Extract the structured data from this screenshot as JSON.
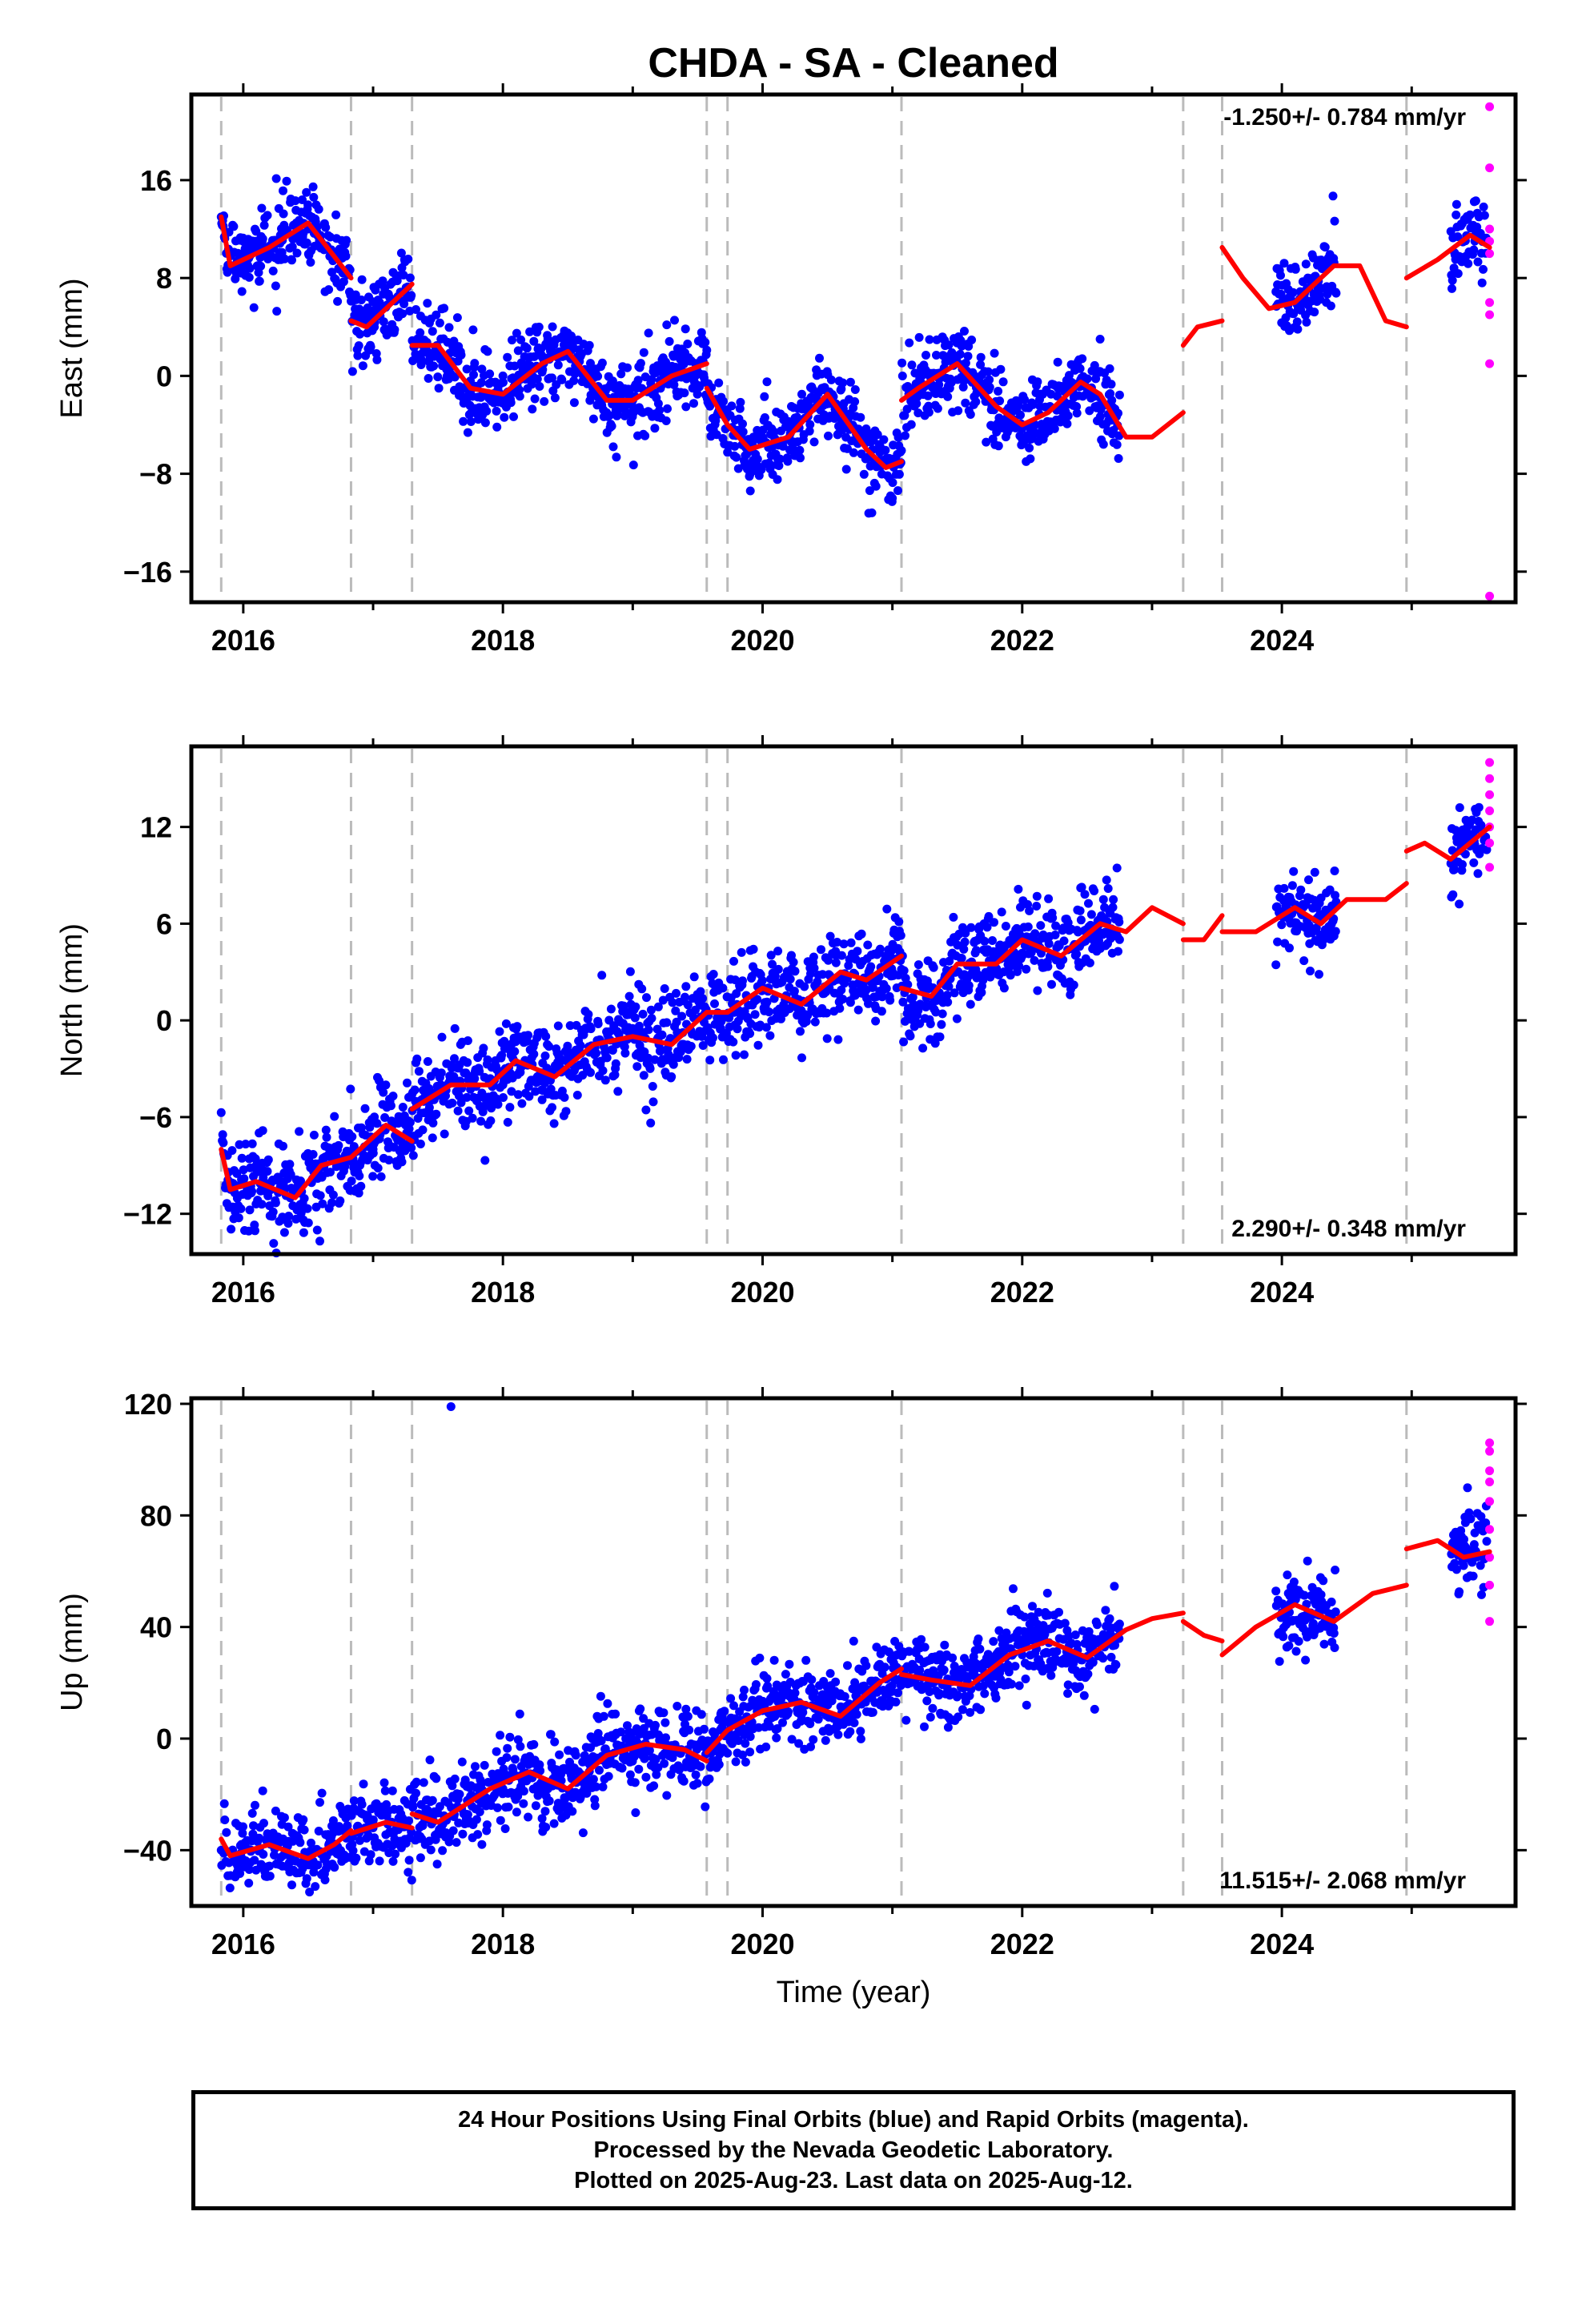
{
  "title": "CHDA  - SA - Cleaned",
  "x_axis_label": "Time (year)",
  "caption": [
    "24 Hour Positions Using Final Orbits (blue) and Rapid Orbits (magenta).",
    "Processed by the Nevada Geodetic Laboratory.",
    "Plotted on 2025-Aug-23. Last data on 2025-Aug-12."
  ],
  "colors": {
    "final_orbits": "#0000ff",
    "rapid_orbits": "#ff00ff",
    "model_fit": "#ff0000",
    "event_lines": "#bbbbbb"
  },
  "chart_data": [
    {
      "type": "scatter",
      "component": "East",
      "ylabel": "East (mm)",
      "rate_label": "-1.250+/- 0.784 mm/yr",
      "rate_label_position": "top-right",
      "xlim": [
        2015.6,
        2025.8
      ],
      "ylim": [
        -18.5,
        23
      ],
      "yticks": [
        16,
        8,
        0,
        -8,
        -16
      ],
      "xticks": [
        2016,
        2018,
        2020,
        2022,
        2024
      ],
      "event_lines": [
        2015.83,
        2016.83,
        2017.3,
        2019.57,
        2019.73,
        2021.07,
        2023.24,
        2023.54,
        2024.96
      ],
      "model_fit": {
        "segments": [
          {
            "x": [
              2015.83,
              2015.9,
              2016.2,
              2016.5,
              2016.83
            ],
            "y": [
              13,
              9,
              10.5,
              12.5,
              8
            ]
          },
          {
            "x": [
              2016.83,
              2016.95,
              2017.3
            ],
            "y": [
              4.5,
              4,
              7.5
            ]
          },
          {
            "x": [
              2017.3,
              2017.5,
              2017.75,
              2018.0,
              2018.3,
              2018.5,
              2018.8,
              2019.0,
              2019.3,
              2019.57
            ],
            "y": [
              2.5,
              2.5,
              -1,
              -1.5,
              1,
              2,
              -2,
              -2,
              0,
              1
            ]
          },
          {
            "x": [
              2019.57,
              2019.73,
              2019.9,
              2020.2,
              2020.5,
              2020.8,
              2020.95,
              2021.07
            ],
            "y": [
              -1,
              -4,
              -6,
              -5,
              -1.5,
              -6,
              -7.5,
              -7
            ]
          },
          {
            "x": [
              2021.07,
              2021.2,
              2021.5,
              2021.8,
              2022.0,
              2022.2,
              2022.45,
              2022.6,
              2022.8,
              2023.0,
              2023.24
            ],
            "y": [
              -2,
              -1,
              1,
              -2.5,
              -4,
              -3,
              -0.5,
              -1.5,
              -5,
              -5,
              -3
            ]
          },
          {
            "x": [
              2023.24,
              2023.35,
              2023.54
            ],
            "y": [
              2.5,
              4,
              4.5
            ]
          },
          {
            "x": [
              2023.54,
              2023.7,
              2023.9,
              2024.1,
              2024.4,
              2024.6,
              2024.8,
              2024.96
            ],
            "y": [
              10.5,
              8,
              5.5,
              6,
              9,
              9,
              4.5,
              4
            ]
          },
          {
            "x": [
              2024.96,
              2025.2,
              2025.45,
              2025.6
            ],
            "y": [
              8,
              9.5,
              11.5,
              10.5
            ]
          }
        ]
      },
      "final_orbits_sample": {
        "x": [
          2016.0,
          2016.5,
          2017.0,
          2018.0,
          2019.0,
          2020.0,
          2021.0,
          2022.0,
          2022.6,
          2024.2,
          2025.4
        ],
        "y": [
          11,
          12,
          5,
          0,
          -2,
          -5,
          -10,
          -4,
          3,
          8,
          11
        ]
      },
      "rapid_orbits": {
        "x": [
          2025.6,
          2025.6,
          2025.6,
          2025.6,
          2025.6,
          2025.6,
          2025.6,
          2025.6,
          2025.6
        ],
        "y": [
          22,
          17,
          12,
          11,
          10,
          6,
          5,
          1,
          -18
        ]
      }
    },
    {
      "type": "scatter",
      "component": "North",
      "ylabel": "North (mm)",
      "rate_label": "2.290+/- 0.348 mm/yr",
      "rate_label_position": "bottom-right",
      "xlim": [
        2015.6,
        2025.8
      ],
      "ylim": [
        -14.5,
        17
      ],
      "yticks": [
        12,
        6,
        0,
        -6,
        -12
      ],
      "xticks": [
        2016,
        2018,
        2020,
        2022,
        2024
      ],
      "event_lines": [
        2015.83,
        2016.83,
        2017.3,
        2019.57,
        2019.73,
        2021.07,
        2023.24,
        2023.54,
        2024.96
      ],
      "model_fit": {
        "segments": [
          {
            "x": [
              2015.83,
              2015.9,
              2016.1,
              2016.4,
              2016.6,
              2016.83
            ],
            "y": [
              -8,
              -10.5,
              -10,
              -11,
              -9,
              -8.5
            ]
          },
          {
            "x": [
              2016.83,
              2017.1,
              2017.3
            ],
            "y": [
              -8.5,
              -6.5,
              -7.5
            ]
          },
          {
            "x": [
              2017.3,
              2017.6,
              2017.9,
              2018.1,
              2018.4,
              2018.7,
              2019.0,
              2019.3,
              2019.57
            ],
            "y": [
              -5.5,
              -4,
              -4,
              -2.5,
              -3.5,
              -1.5,
              -1,
              -1.5,
              0.5
            ]
          },
          {
            "x": [
              2019.57,
              2019.73,
              2020.0,
              2020.3,
              2020.6,
              2020.8,
              2021.07
            ],
            "y": [
              0.5,
              0.5,
              2,
              1,
              3,
              2.5,
              4
            ]
          },
          {
            "x": [
              2021.07,
              2021.3,
              2021.5,
              2021.8,
              2022.0,
              2022.3,
              2022.6,
              2022.8,
              2023.0,
              2023.24
            ],
            "y": [
              2,
              1.5,
              3.5,
              3.5,
              5,
              4,
              6,
              5.5,
              7,
              6
            ]
          },
          {
            "x": [
              2023.24,
              2023.4,
              2023.54
            ],
            "y": [
              5,
              5,
              6.5
            ]
          },
          {
            "x": [
              2023.54,
              2023.8,
              2024.1,
              2024.3,
              2024.5,
              2024.8,
              2024.96
            ],
            "y": [
              5.5,
              5.5,
              7,
              6,
              7.5,
              7.5,
              8.5
            ]
          },
          {
            "x": [
              2024.96,
              2025.1,
              2025.3,
              2025.6
            ],
            "y": [
              10.5,
              11,
              10,
              12
            ]
          }
        ]
      },
      "final_orbits_sample": {
        "x": [
          2016.0,
          2017.0,
          2018.0,
          2019.0,
          2020.0,
          2021.0,
          2022.0,
          2022.6,
          2024.2,
          2025.4
        ],
        "y": [
          -10,
          -8,
          -4,
          -1,
          2,
          3,
          4,
          6,
          6,
          11
        ]
      },
      "rapid_orbits": {
        "x": [
          2025.6,
          2025.6,
          2025.6,
          2025.6,
          2025.6,
          2025.6,
          2025.6
        ],
        "y": [
          16,
          15,
          14,
          13,
          12,
          11,
          9.5
        ]
      }
    },
    {
      "type": "scatter",
      "component": "Up",
      "ylabel": "Up (mm)",
      "rate_label": "11.515+/- 2.068 mm/yr",
      "rate_label_position": "bottom-right",
      "xlim": [
        2015.6,
        2025.8
      ],
      "ylim": [
        -60,
        122
      ],
      "yticks": [
        120,
        80,
        40,
        0,
        -40
      ],
      "xticks": [
        2016,
        2018,
        2020,
        2022,
        2024
      ],
      "event_lines": [
        2015.83,
        2016.83,
        2017.3,
        2019.57,
        2019.73,
        2021.07,
        2023.24,
        2023.54,
        2024.96
      ],
      "model_fit": {
        "segments": [
          {
            "x": [
              2015.83,
              2015.9,
              2016.2,
              2016.5,
              2016.7,
              2016.83
            ],
            "y": [
              -36,
              -42,
              -38,
              -43,
              -38,
              -33
            ]
          },
          {
            "x": [
              2016.83,
              2017.1,
              2017.3
            ],
            "y": [
              -34,
              -30,
              -32
            ]
          },
          {
            "x": [
              2017.3,
              2017.5,
              2017.9,
              2018.2,
              2018.5,
              2018.8,
              2019.1,
              2019.4,
              2019.57
            ],
            "y": [
              -27,
              -30,
              -18,
              -12,
              -18,
              -6,
              -2,
              -4,
              -8
            ]
          },
          {
            "x": [
              2019.57,
              2019.73,
              2020.0,
              2020.3,
              2020.6,
              2020.9,
              2021.07
            ],
            "y": [
              -5,
              3,
              10,
              13,
              8,
              20,
              25
            ]
          },
          {
            "x": [
              2021.07,
              2021.3,
              2021.6,
              2021.9,
              2022.2,
              2022.5,
              2022.8,
              2023.0,
              2023.24
            ],
            "y": [
              23,
              21,
              19,
              30,
              35,
              29,
              39,
              43,
              45
            ]
          },
          {
            "x": [
              2023.24,
              2023.4,
              2023.54
            ],
            "y": [
              42,
              37,
              35
            ]
          },
          {
            "x": [
              2023.54,
              2023.8,
              2024.1,
              2024.4,
              2024.7,
              2024.96
            ],
            "y": [
              30,
              40,
              48,
              42,
              52,
              55
            ]
          },
          {
            "x": [
              2024.96,
              2025.2,
              2025.4,
              2025.6
            ],
            "y": [
              68,
              71,
              65,
              67
            ]
          }
        ]
      },
      "final_orbits_sample": {
        "x": [
          2016.0,
          2017.0,
          2017.6,
          2018.0,
          2019.0,
          2020.0,
          2021.0,
          2022.0,
          2022.6,
          2024.2,
          2025.4
        ],
        "y": [
          -38,
          -32,
          119,
          -18,
          -6,
          10,
          22,
          30,
          30,
          45,
          62
        ]
      },
      "rapid_orbits": {
        "x": [
          2025.6,
          2025.6,
          2025.6,
          2025.6,
          2025.6,
          2025.6,
          2025.6,
          2025.6,
          2025.6
        ],
        "y": [
          106,
          103,
          96,
          92,
          85,
          75,
          65,
          55,
          42
        ]
      }
    }
  ]
}
